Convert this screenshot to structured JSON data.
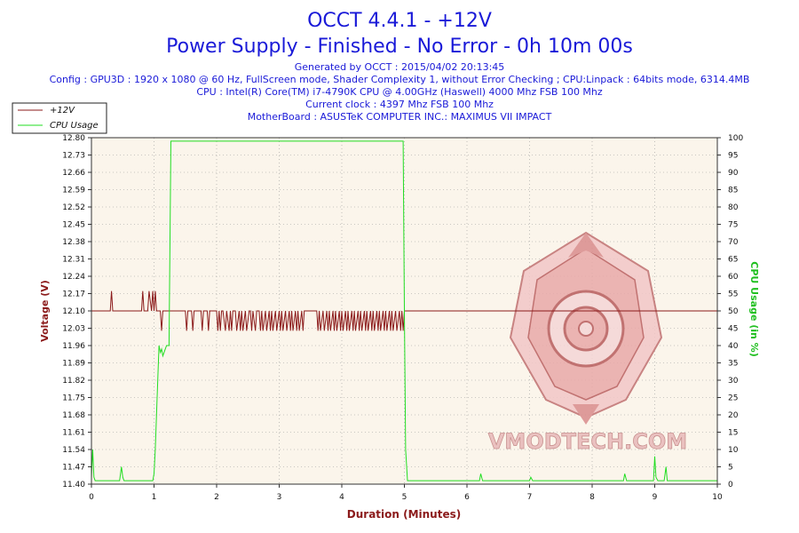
{
  "header": {
    "title": "OCCT 4.4.1 - +12V",
    "subtitle": "Power Supply - Finished - No Error - 0h 10m 00s",
    "generated": "Generated by OCCT : 2015/04/02 20:13:45",
    "config": "Config : GPU3D : 1920 x 1080 @ 60 Hz, FullScreen mode, Shader Complexity 1, without Error Checking ; CPU:Linpack : 64bits mode, 6314.4MB",
    "cpu": "CPU : Intel(R) Core(TM) i7-4790K CPU @ 4.00GHz (Haswell) 4000 Mhz FSB 100 Mhz",
    "clock": "Current clock : 4397 Mhz FSB 100 Mhz",
    "motherboard": "MotherBoard : ASUSTeK COMPUTER INC.: MAXIMUS VII IMPACT"
  },
  "watermark": "VMODTECH.COM",
  "colors": {
    "voltage": "#8b1a1a",
    "cpu": "#22dd22",
    "plot_bg": "#fbf5eb",
    "grid": "#999999"
  },
  "chart_data": {
    "type": "line",
    "title": "OCCT 4.4.1 - +12V",
    "xlabel": "Duration (Minutes)",
    "ylabel": "Voltage (V)",
    "y2label": "CPU Usage (in %)",
    "xlim": [
      0,
      10
    ],
    "ylim": [
      11.4,
      12.8
    ],
    "y2lim": [
      0,
      100
    ],
    "grid": true,
    "legend_position": "top-left",
    "x_ticks": [
      "0",
      "1",
      "2",
      "3",
      "4",
      "5",
      "6",
      "7",
      "8",
      "9",
      "10"
    ],
    "y_ticks": [
      "11.40",
      "11.47",
      "11.54",
      "11.61",
      "11.68",
      "11.75",
      "11.82",
      "11.89",
      "11.96",
      "12.03",
      "12.10",
      "12.17",
      "12.24",
      "12.31",
      "12.38",
      "12.45",
      "12.52",
      "12.59",
      "12.66",
      "12.73",
      "12.80"
    ],
    "y2_ticks": [
      "0",
      "5",
      "10",
      "15",
      "20",
      "25",
      "30",
      "35",
      "40",
      "45",
      "50",
      "55",
      "60",
      "65",
      "70",
      "75",
      "80",
      "85",
      "90",
      "95",
      "100"
    ],
    "series": [
      {
        "name": "+12V",
        "axis": "left",
        "x": [
          0,
          0.3,
          0.32,
          0.34,
          0.36,
          0.8,
          0.82,
          0.84,
          0.86,
          0.9,
          0.92,
          0.96,
          0.98,
          1.0,
          1.02,
          1.04,
          1.06,
          1.1,
          1.12,
          1.14,
          1.16,
          1.5,
          1.52,
          1.54,
          1.56,
          1.6,
          1.62,
          1.64,
          1.66,
          1.75,
          1.77,
          1.79,
          1.81,
          1.85,
          1.87,
          1.89,
          1.91,
          2.0,
          2.02,
          2.04,
          2.06,
          2.08,
          2.1,
          2.14,
          2.16,
          2.2,
          2.22,
          2.24,
          2.26,
          2.3,
          2.32,
          2.36,
          2.38,
          2.4,
          2.42,
          2.46,
          2.48,
          2.52,
          2.54,
          2.56,
          2.58,
          2.62,
          2.64,
          2.68,
          2.7,
          2.72,
          2.74,
          2.78,
          2.8,
          2.84,
          2.86,
          2.88,
          2.9,
          2.94,
          2.96,
          3.0,
          3.02,
          3.04,
          3.06,
          3.1,
          3.12,
          3.16,
          3.18,
          3.2,
          3.22,
          3.26,
          3.28,
          3.3,
          3.32,
          3.36,
          3.38,
          3.4,
          3.42,
          3.6,
          3.62,
          3.64,
          3.66,
          3.7,
          3.72,
          3.76,
          3.78,
          3.8,
          3.82,
          3.86,
          3.88,
          3.9,
          3.92,
          3.96,
          3.98,
          4.0,
          4.02,
          4.06,
          4.08,
          4.1,
          4.12,
          4.16,
          4.18,
          4.2,
          4.22,
          4.26,
          4.28,
          4.3,
          4.32,
          4.36,
          4.38,
          4.4,
          4.42,
          4.46,
          4.48,
          4.5,
          4.52,
          4.56,
          4.58,
          4.6,
          4.62,
          4.66,
          4.68,
          4.7,
          4.72,
          4.76,
          4.78,
          4.8,
          4.82,
          4.86,
          4.88,
          4.92,
          4.94,
          4.96,
          4.98,
          5.0,
          10.0
        ],
        "values": [
          12.1,
          12.1,
          12.18,
          12.1,
          12.1,
          12.1,
          12.18,
          12.1,
          12.1,
          12.1,
          12.18,
          12.1,
          12.18,
          12.1,
          12.18,
          12.1,
          12.1,
          12.1,
          12.02,
          12.1,
          12.1,
          12.1,
          12.02,
          12.1,
          12.1,
          12.1,
          12.02,
          12.1,
          12.1,
          12.1,
          12.02,
          12.1,
          12.1,
          12.1,
          12.02,
          12.1,
          12.1,
          12.1,
          12.02,
          12.1,
          12.02,
          12.1,
          12.1,
          12.02,
          12.1,
          12.02,
          12.1,
          12.02,
          12.1,
          12.1,
          12.02,
          12.1,
          12.02,
          12.1,
          12.02,
          12.1,
          12.02,
          12.1,
          12.1,
          12.02,
          12.1,
          12.02,
          12.1,
          12.1,
          12.02,
          12.1,
          12.02,
          12.1,
          12.02,
          12.1,
          12.02,
          12.1,
          12.02,
          12.1,
          12.02,
          12.1,
          12.02,
          12.1,
          12.02,
          12.1,
          12.02,
          12.1,
          12.02,
          12.1,
          12.02,
          12.1,
          12.02,
          12.1,
          12.02,
          12.1,
          12.02,
          12.1,
          12.1,
          12.1,
          12.02,
          12.1,
          12.02,
          12.1,
          12.02,
          12.1,
          12.02,
          12.1,
          12.02,
          12.1,
          12.02,
          12.1,
          12.02,
          12.1,
          12.02,
          12.1,
          12.02,
          12.1,
          12.02,
          12.1,
          12.02,
          12.1,
          12.02,
          12.1,
          12.02,
          12.1,
          12.02,
          12.1,
          12.02,
          12.1,
          12.02,
          12.1,
          12.02,
          12.1,
          12.02,
          12.1,
          12.02,
          12.1,
          12.02,
          12.1,
          12.02,
          12.1,
          12.02,
          12.1,
          12.02,
          12.1,
          12.02,
          12.1,
          12.02,
          12.1,
          12.02,
          12.1,
          12.02,
          12.1,
          12.02,
          12.1,
          12.1
        ]
      },
      {
        "name": "CPU Usage",
        "axis": "right",
        "x": [
          0,
          0.02,
          0.04,
          0.06,
          0.1,
          0.45,
          0.48,
          0.5,
          0.52,
          0.55,
          0.98,
          1.0,
          1.02,
          1.04,
          1.06,
          1.08,
          1.1,
          1.12,
          1.14,
          1.16,
          1.2,
          1.24,
          1.27,
          1.3,
          4.98,
          5.0,
          5.02,
          5.05,
          5.5,
          6.2,
          6.22,
          6.25,
          7.0,
          7.02,
          7.05,
          8.5,
          8.52,
          8.55,
          8.98,
          9.0,
          9.02,
          9.05,
          9.15,
          9.18,
          9.2,
          9.25,
          9.5,
          10.0
        ],
        "values": [
          2,
          10,
          2,
          1,
          1,
          1,
          5,
          2,
          1,
          1,
          1,
          3,
          10,
          20,
          30,
          40,
          38,
          39,
          37,
          38,
          40,
          40,
          99,
          99,
          99,
          50,
          10,
          1,
          1,
          1,
          3,
          1,
          1,
          2,
          1,
          1,
          3,
          1,
          1,
          8,
          2,
          1,
          1,
          5,
          1,
          1,
          1,
          1
        ]
      }
    ]
  }
}
